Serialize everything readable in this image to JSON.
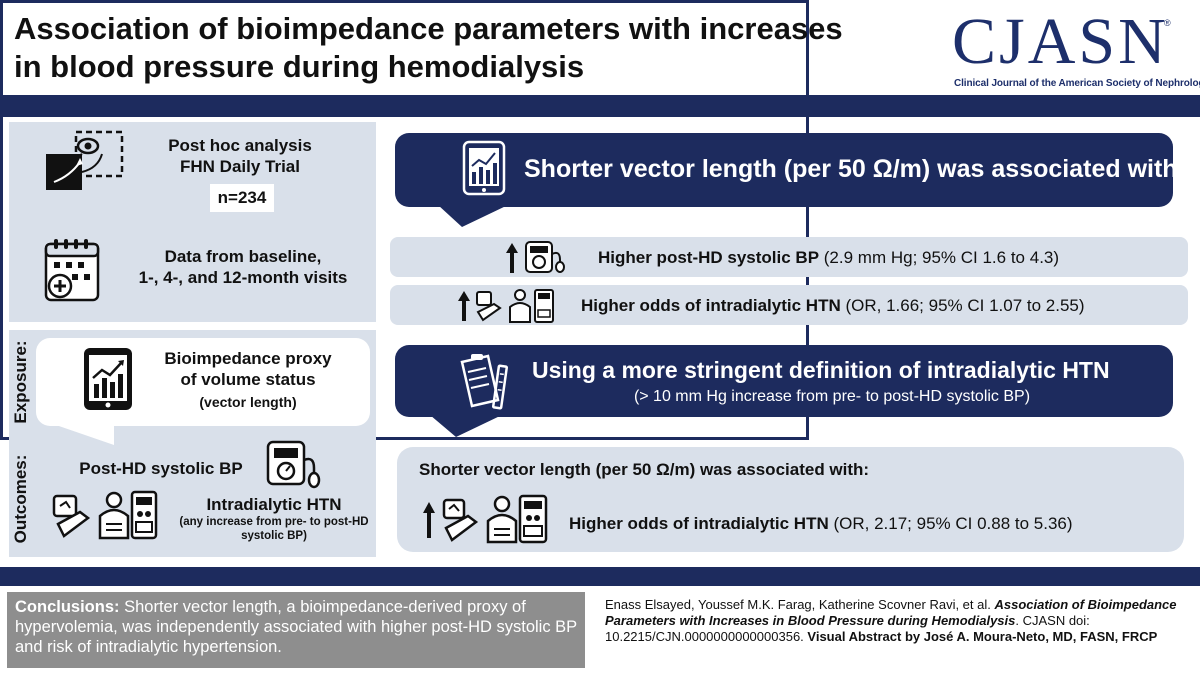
{
  "header": {
    "title_line1": "Association of bioimpedance parameters with increases",
    "title_line2": "in blood pressure during hemodialysis",
    "logo_text": "CJASN",
    "logo_reg": "®",
    "logo_subtitle": "Clinical Journal of the American Society of Nephrology"
  },
  "study": {
    "design_line1": "Post hoc analysis",
    "design_line2": "FHN Daily Trial",
    "n": "n=234",
    "visits_line1": "Data from baseline,",
    "visits_line2": "1-, 4-, and 12-month visits"
  },
  "exposure": {
    "label": "Exposure:",
    "line1": "Bioimpedance proxy",
    "line2": "of volume status",
    "line3": "(vector length)"
  },
  "outcomes": {
    "label": "Outcomes:",
    "outcome1": "Post-HD systolic BP",
    "outcome2": "Intradialytic HTN",
    "outcome2_note_line1": "(any increase from pre- to post-HD",
    "outcome2_note_line2": "systolic BP)"
  },
  "results": {
    "heading": "Shorter vector length (per 50 Ω/m) was associated with:",
    "row1_bold": "Higher post-HD systolic BP",
    "row1_detail": " (2.9 mm Hg; 95% CI 1.6 to 4.3)",
    "row2_bold": "Higher odds of intradialytic HTN",
    "row2_detail": " (OR, 1.66; 95% CI 1.07 to 2.55)"
  },
  "sensitivity": {
    "heading": "Using a more stringent definition of intradialytic HTN",
    "subheading": "(> 10 mm Hg increase from pre- to post-HD systolic BP)",
    "panel_heading": "Shorter vector length (per 50 Ω/m) was associated with:",
    "row_bold": "Higher odds of intradialytic HTN",
    "row_detail": " (OR, 2.17; 95% CI 0.88 to 5.36)"
  },
  "footer": {
    "conclusions_label": "Conclusions:",
    "conclusions_text": " Shorter vector length, a bioimpedance-derived proxy of hypervolemia, was independently associated with higher post-HD systolic BP and risk of intradialytic hypertension.",
    "authors": "Enass Elsayed, Youssef M.K. Farag, Katherine Scovner Ravi, et al. ",
    "article_title": "Association of Bioimpedance Parameters with Increases in Blood Pressure during Hemodialysis",
    "journal_doi": ". CJASN doi: 10.2215/CJN.0000000000000356. ",
    "visual_abstract_by": "Visual Abstract by José A. Moura-Neto, MD, FASN, FRCP"
  },
  "colors": {
    "navy": "#1d2b5e",
    "panel": "#d9e0ea",
    "conclusion_bg": "#8e8e8e"
  }
}
